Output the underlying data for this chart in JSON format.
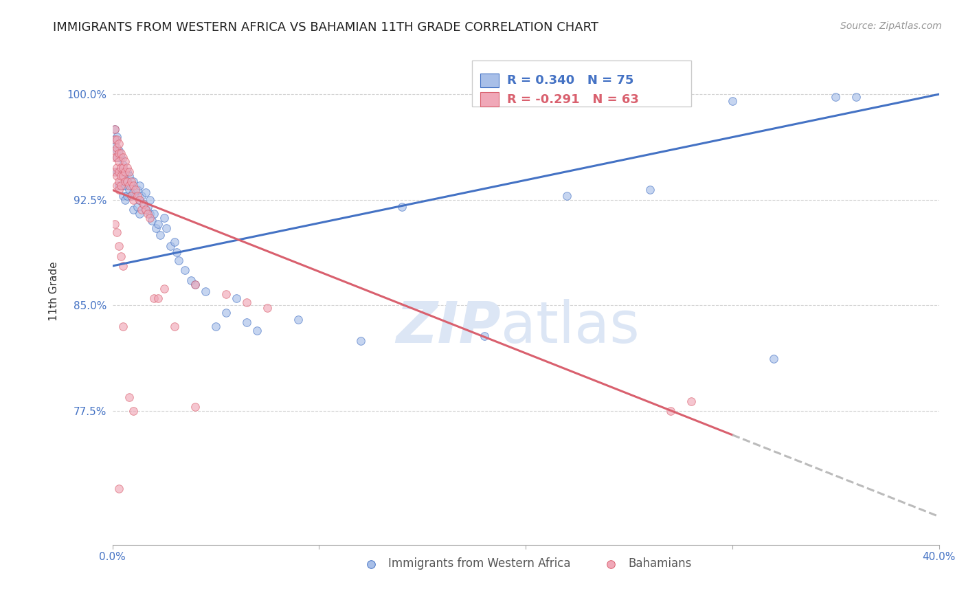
{
  "title": "IMMIGRANTS FROM WESTERN AFRICA VS BAHAMIAN 11TH GRADE CORRELATION CHART",
  "source": "Source: ZipAtlas.com",
  "ylabel": "11th Grade",
  "ytick_labels": [
    "100.0%",
    "92.5%",
    "85.0%",
    "77.5%"
  ],
  "ytick_values": [
    1.0,
    0.925,
    0.85,
    0.775
  ],
  "xlim": [
    0.0,
    0.4
  ],
  "ylim": [
    0.68,
    1.04
  ],
  "blue_R": 0.34,
  "blue_N": 75,
  "pink_R": -0.291,
  "pink_N": 63,
  "legend_label_blue": "Immigrants from Western Africa",
  "legend_label_pink": "Bahamians",
  "blue_line_color": "#4472c4",
  "pink_line_color": "#d9606e",
  "blue_dot_facecolor": "#a8bfe8",
  "pink_dot_facecolor": "#f0a8b8",
  "dot_size": 70,
  "dot_alpha": 0.65,
  "line_width": 2.2,
  "background_color": "#ffffff",
  "grid_color": "#d0d0d0",
  "tick_color": "#4472c4",
  "title_fontsize": 13,
  "source_fontsize": 10,
  "axis_label_fontsize": 11,
  "watermark_color": "#dce6f5",
  "watermark_fontsize": 60,
  "blue_line_x0": 0.0,
  "blue_line_y0": 0.878,
  "blue_line_x1": 0.4,
  "blue_line_y1": 1.0,
  "pink_line_x0": 0.0,
  "pink_line_y0": 0.932,
  "pink_line_x1": 0.3,
  "pink_line_y1": 0.758,
  "blue_dots": [
    [
      0.001,
      0.975
    ],
    [
      0.001,
      0.965
    ],
    [
      0.002,
      0.97
    ],
    [
      0.002,
      0.96
    ],
    [
      0.002,
      0.955
    ],
    [
      0.002,
      0.945
    ],
    [
      0.003,
      0.955
    ],
    [
      0.003,
      0.945
    ],
    [
      0.003,
      0.935
    ],
    [
      0.004,
      0.955
    ],
    [
      0.004,
      0.945
    ],
    [
      0.004,
      0.935
    ],
    [
      0.005,
      0.95
    ],
    [
      0.005,
      0.945
    ],
    [
      0.005,
      0.935
    ],
    [
      0.005,
      0.928
    ],
    [
      0.006,
      0.94
    ],
    [
      0.006,
      0.935
    ],
    [
      0.006,
      0.925
    ],
    [
      0.007,
      0.945
    ],
    [
      0.007,
      0.938
    ],
    [
      0.007,
      0.928
    ],
    [
      0.008,
      0.942
    ],
    [
      0.008,
      0.932
    ],
    [
      0.009,
      0.935
    ],
    [
      0.009,
      0.928
    ],
    [
      0.01,
      0.938
    ],
    [
      0.01,
      0.93
    ],
    [
      0.01,
      0.918
    ],
    [
      0.011,
      0.928
    ],
    [
      0.012,
      0.932
    ],
    [
      0.012,
      0.92
    ],
    [
      0.013,
      0.935
    ],
    [
      0.013,
      0.925
    ],
    [
      0.013,
      0.915
    ],
    [
      0.014,
      0.928
    ],
    [
      0.015,
      0.922
    ],
    [
      0.016,
      0.93
    ],
    [
      0.016,
      0.918
    ],
    [
      0.017,
      0.92
    ],
    [
      0.018,
      0.925
    ],
    [
      0.018,
      0.915
    ],
    [
      0.019,
      0.91
    ],
    [
      0.02,
      0.915
    ],
    [
      0.021,
      0.905
    ],
    [
      0.022,
      0.908
    ],
    [
      0.023,
      0.9
    ],
    [
      0.025,
      0.912
    ],
    [
      0.026,
      0.905
    ],
    [
      0.028,
      0.892
    ],
    [
      0.03,
      0.895
    ],
    [
      0.031,
      0.888
    ],
    [
      0.032,
      0.882
    ],
    [
      0.035,
      0.875
    ],
    [
      0.038,
      0.868
    ],
    [
      0.04,
      0.865
    ],
    [
      0.045,
      0.86
    ],
    [
      0.05,
      0.835
    ],
    [
      0.055,
      0.845
    ],
    [
      0.06,
      0.855
    ],
    [
      0.065,
      0.838
    ],
    [
      0.07,
      0.832
    ],
    [
      0.09,
      0.84
    ],
    [
      0.12,
      0.825
    ],
    [
      0.14,
      0.92
    ],
    [
      0.18,
      0.828
    ],
    [
      0.22,
      0.928
    ],
    [
      0.26,
      0.932
    ],
    [
      0.27,
      0.998
    ],
    [
      0.3,
      0.995
    ],
    [
      0.32,
      0.812
    ],
    [
      0.35,
      0.998
    ],
    [
      0.36,
      0.998
    ],
    [
      0.001,
      0.968
    ],
    [
      0.003,
      0.96
    ]
  ],
  "pink_dots": [
    [
      0.001,
      0.975
    ],
    [
      0.001,
      0.968
    ],
    [
      0.001,
      0.96
    ],
    [
      0.001,
      0.955
    ],
    [
      0.001,
      0.945
    ],
    [
      0.002,
      0.968
    ],
    [
      0.002,
      0.962
    ],
    [
      0.002,
      0.955
    ],
    [
      0.002,
      0.948
    ],
    [
      0.002,
      0.942
    ],
    [
      0.002,
      0.935
    ],
    [
      0.003,
      0.965
    ],
    [
      0.003,
      0.958
    ],
    [
      0.003,
      0.952
    ],
    [
      0.003,
      0.945
    ],
    [
      0.003,
      0.938
    ],
    [
      0.003,
      0.932
    ],
    [
      0.004,
      0.958
    ],
    [
      0.004,
      0.948
    ],
    [
      0.004,
      0.942
    ],
    [
      0.004,
      0.935
    ],
    [
      0.005,
      0.955
    ],
    [
      0.005,
      0.948
    ],
    [
      0.005,
      0.942
    ],
    [
      0.005,
      0.835
    ],
    [
      0.006,
      0.952
    ],
    [
      0.006,
      0.945
    ],
    [
      0.006,
      0.938
    ],
    [
      0.007,
      0.948
    ],
    [
      0.007,
      0.938
    ],
    [
      0.008,
      0.945
    ],
    [
      0.008,
      0.935
    ],
    [
      0.009,
      0.938
    ],
    [
      0.009,
      0.928
    ],
    [
      0.01,
      0.935
    ],
    [
      0.01,
      0.925
    ],
    [
      0.011,
      0.932
    ],
    [
      0.012,
      0.928
    ],
    [
      0.013,
      0.925
    ],
    [
      0.014,
      0.918
    ],
    [
      0.015,
      0.922
    ],
    [
      0.016,
      0.918
    ],
    [
      0.017,
      0.915
    ],
    [
      0.018,
      0.912
    ],
    [
      0.02,
      0.855
    ],
    [
      0.022,
      0.855
    ],
    [
      0.025,
      0.862
    ],
    [
      0.03,
      0.835
    ],
    [
      0.04,
      0.865
    ],
    [
      0.055,
      0.858
    ],
    [
      0.065,
      0.852
    ],
    [
      0.075,
      0.848
    ],
    [
      0.001,
      0.908
    ],
    [
      0.002,
      0.902
    ],
    [
      0.003,
      0.892
    ],
    [
      0.004,
      0.885
    ],
    [
      0.005,
      0.878
    ],
    [
      0.008,
      0.785
    ],
    [
      0.01,
      0.775
    ],
    [
      0.27,
      0.775
    ],
    [
      0.003,
      0.72
    ],
    [
      0.04,
      0.778
    ],
    [
      0.28,
      0.782
    ]
  ]
}
